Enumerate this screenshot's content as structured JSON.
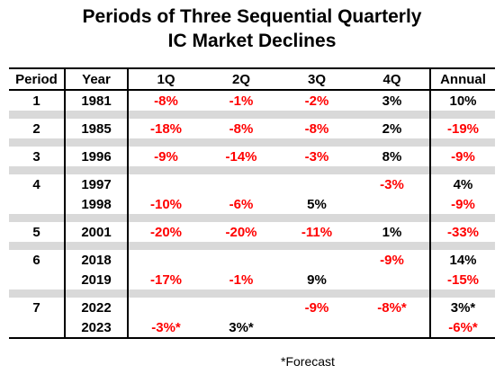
{
  "chart_data": {
    "type": "table",
    "title": [
      "Periods of Three Sequential Quarterly",
      "IC Market Declines"
    ],
    "columns": [
      "Period",
      "Year",
      "1Q",
      "2Q",
      "3Q",
      "4Q",
      "Annual"
    ],
    "groups": [
      {
        "period": "1",
        "rows": [
          {
            "year": "1981",
            "q1": "-8%",
            "q2": "-1%",
            "q3": "-2%",
            "q4": "3%",
            "annual": "10%"
          }
        ]
      },
      {
        "period": "2",
        "rows": [
          {
            "year": "1985",
            "q1": "-18%",
            "q2": "-8%",
            "q3": "-8%",
            "q4": "2%",
            "annual": "-19%"
          }
        ]
      },
      {
        "period": "3",
        "rows": [
          {
            "year": "1996",
            "q1": "-9%",
            "q2": "-14%",
            "q3": "-3%",
            "q4": "8%",
            "annual": "-9%"
          }
        ]
      },
      {
        "period": "4",
        "rows": [
          {
            "year": "1997",
            "q1": "",
            "q2": "",
            "q3": "",
            "q4": "-3%",
            "annual": "4%"
          },
          {
            "year": "1998",
            "q1": "-10%",
            "q2": "-6%",
            "q3": "5%",
            "q4": "",
            "annual": "-9%"
          }
        ]
      },
      {
        "period": "5",
        "rows": [
          {
            "year": "2001",
            "q1": "-20%",
            "q2": "-20%",
            "q3": "-11%",
            "q4": "1%",
            "annual": "-33%"
          }
        ]
      },
      {
        "period": "6",
        "rows": [
          {
            "year": "2018",
            "q1": "",
            "q2": "",
            "q3": "",
            "q4": "-9%",
            "annual": "14%"
          },
          {
            "year": "2019",
            "q1": "-17%",
            "q2": "-1%",
            "q3": "9%",
            "q4": "",
            "annual": "-15%"
          }
        ]
      },
      {
        "period": "7",
        "rows": [
          {
            "year": "2022",
            "q1": "",
            "q2": "",
            "q3": "-9%",
            "q4": "-8%*",
            "annual": "3%*"
          },
          {
            "year": "2023",
            "q1": "-3%*",
            "q2": "3%*",
            "q3": "",
            "q4": "",
            "annual": "-6%*"
          }
        ]
      }
    ],
    "footnote": "*Forecast",
    "colors": {
      "negative": "#ff0000",
      "positive": "#000000",
      "separator": "#d9d9d9"
    }
  }
}
